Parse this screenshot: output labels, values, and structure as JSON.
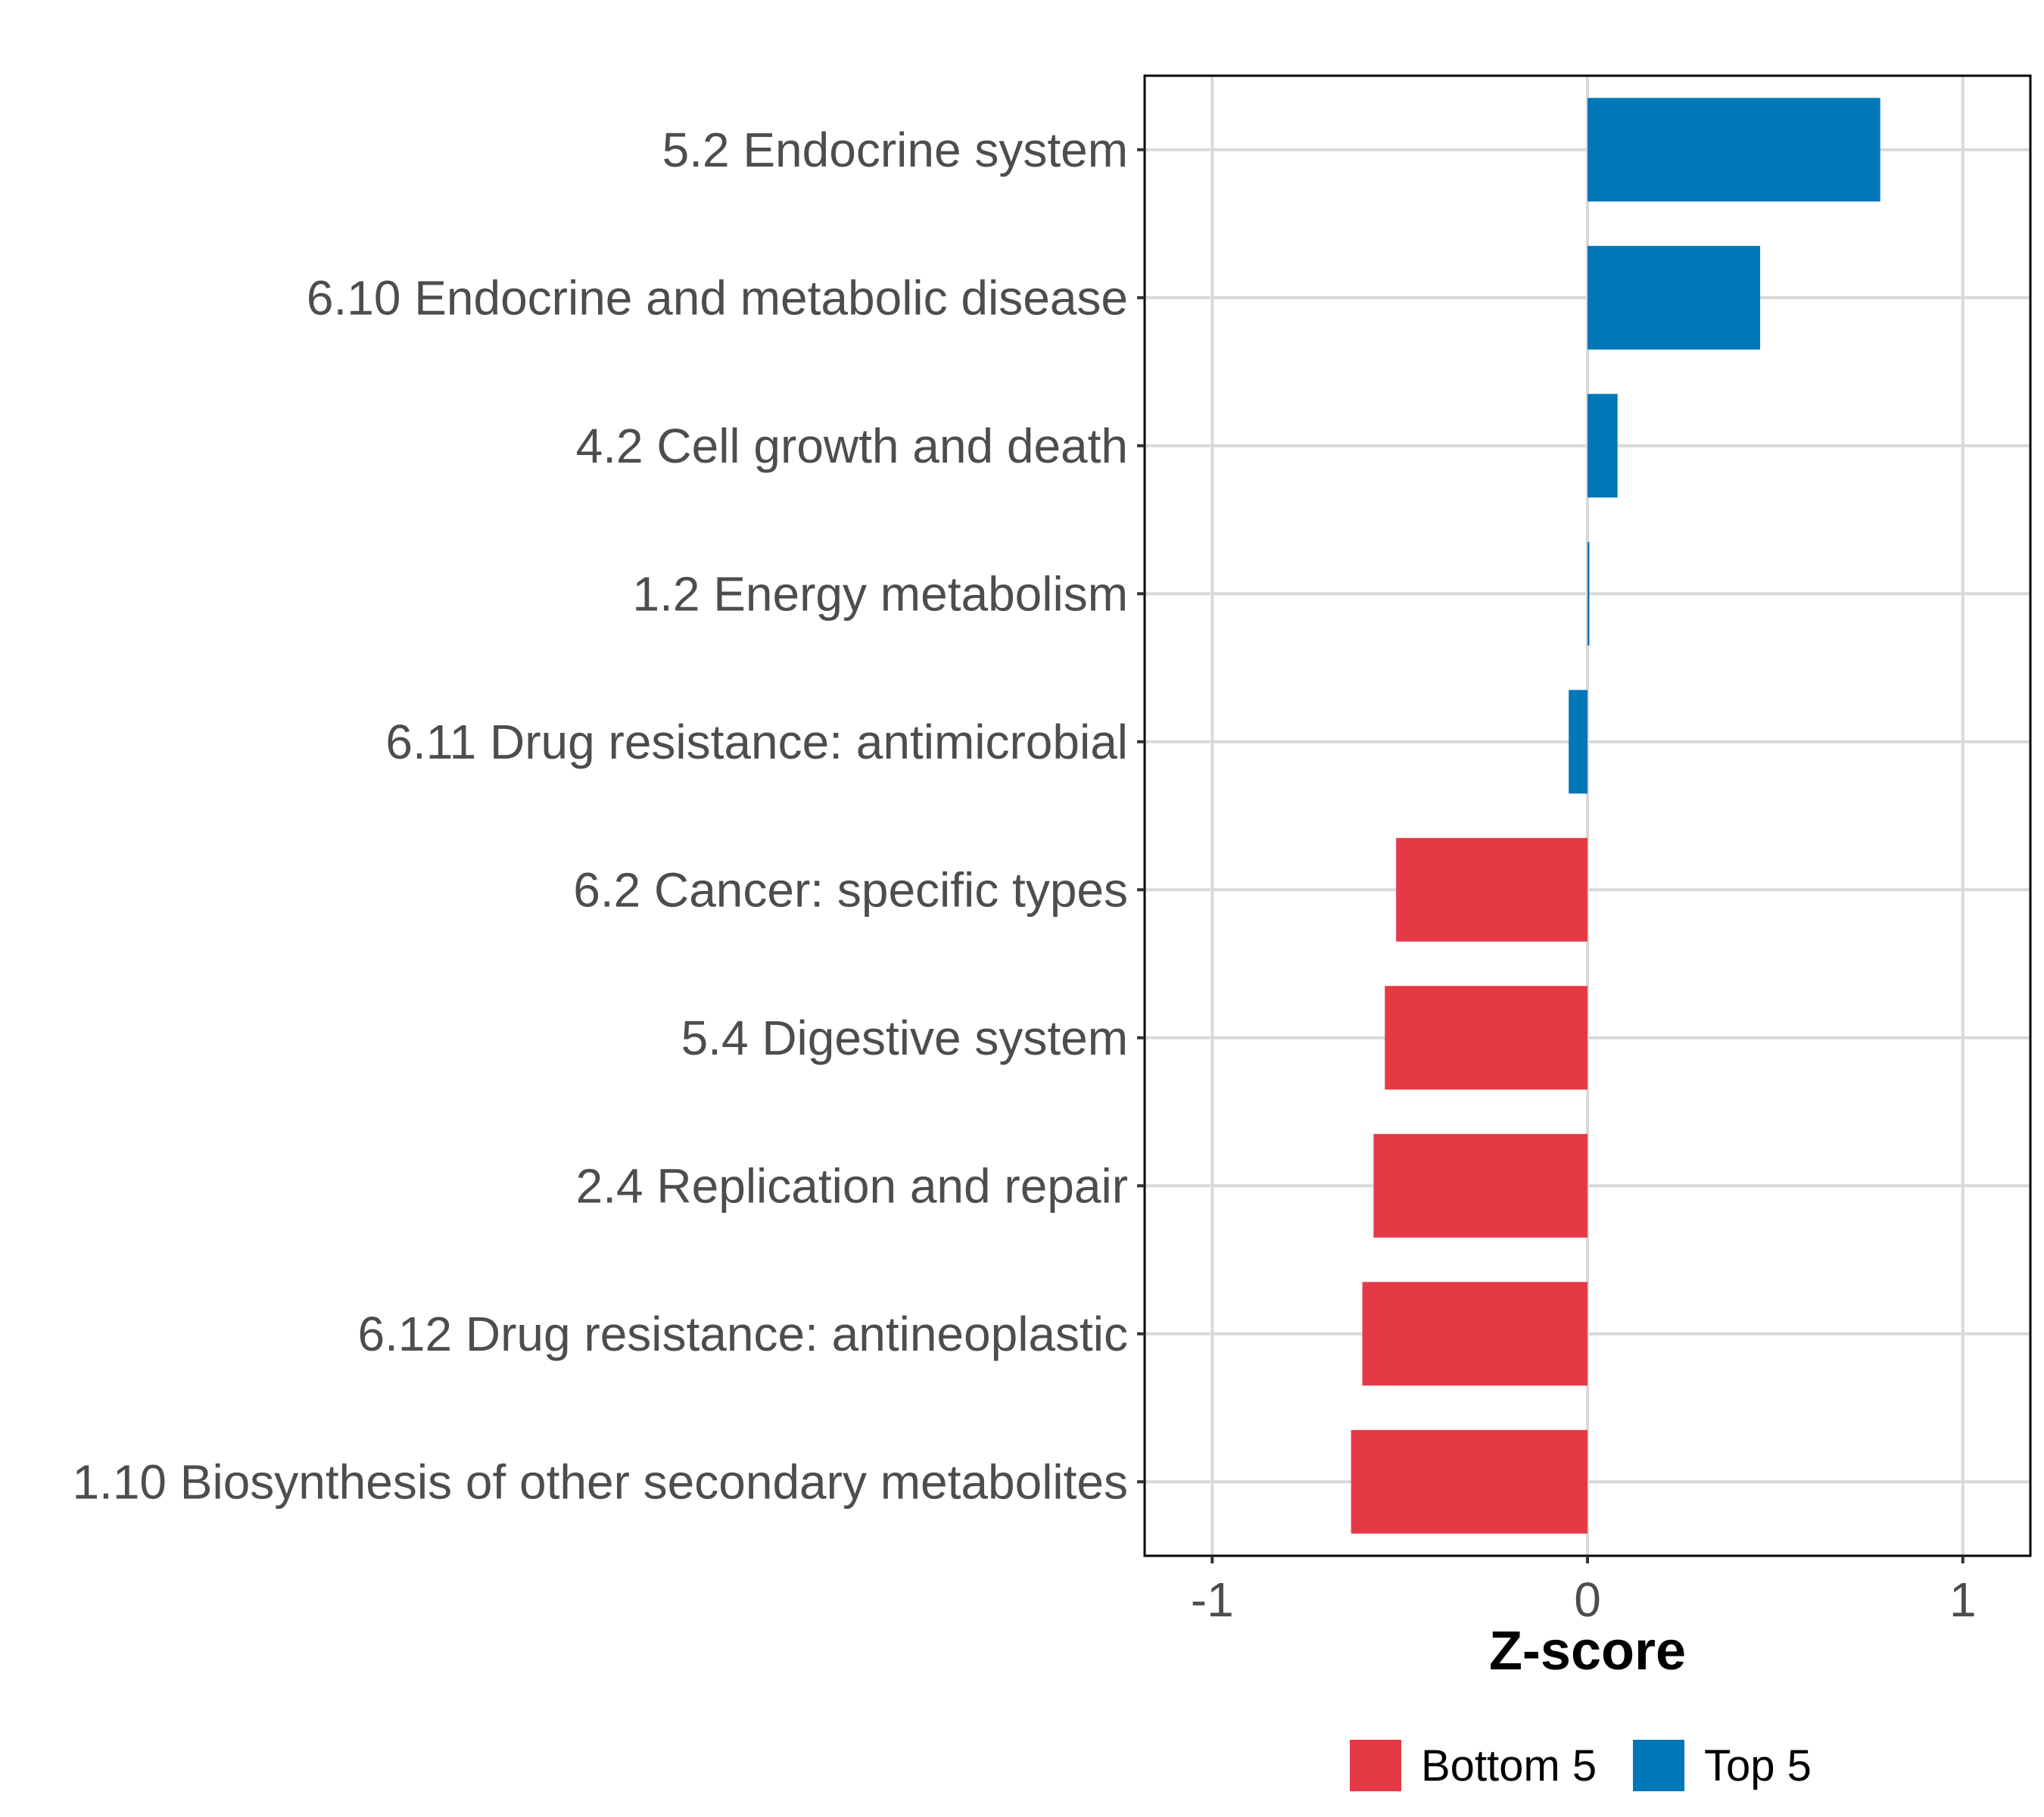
{
  "chart_data": {
    "type": "bar",
    "orientation": "horizontal",
    "categories": [
      "5.2 Endocrine system",
      "6.10 Endocrine and metabolic disease",
      "4.2 Cell growth and death",
      "1.2 Energy metabolism",
      "6.11 Drug resistance: antimicrobial",
      "6.2 Cancer: specific types",
      "5.4 Digestive system",
      "2.4 Replication and repair",
      "6.12 Drug resistance: antineoplastic",
      "1.10 Biosynthesis of other secondary metabolites"
    ],
    "values": [
      0.78,
      0.46,
      0.08,
      0.005,
      -0.05,
      -0.51,
      -0.54,
      -0.57,
      -0.6,
      -0.63
    ],
    "groups": [
      "Top 5",
      "Top 5",
      "Top 5",
      "Top 5",
      "Top 5",
      "Bottom 5",
      "Bottom 5",
      "Bottom 5",
      "Bottom 5",
      "Bottom 5"
    ],
    "title": "",
    "xlabel": "Z-score",
    "ylabel": "",
    "xlim": [
      -1.18,
      1.18
    ],
    "xticks": [
      -1,
      0,
      1
    ],
    "xtick_labels": [
      "-1",
      "0",
      "1"
    ],
    "grid": true,
    "legend": {
      "position": "bottom",
      "entries": [
        {
          "label": "Bottom 5",
          "color": "#e63946"
        },
        {
          "label": "Top 5",
          "color": "#0077b6"
        }
      ]
    },
    "colors": {
      "Top 5": "#0077b6",
      "Bottom 5": "#e63946"
    }
  }
}
